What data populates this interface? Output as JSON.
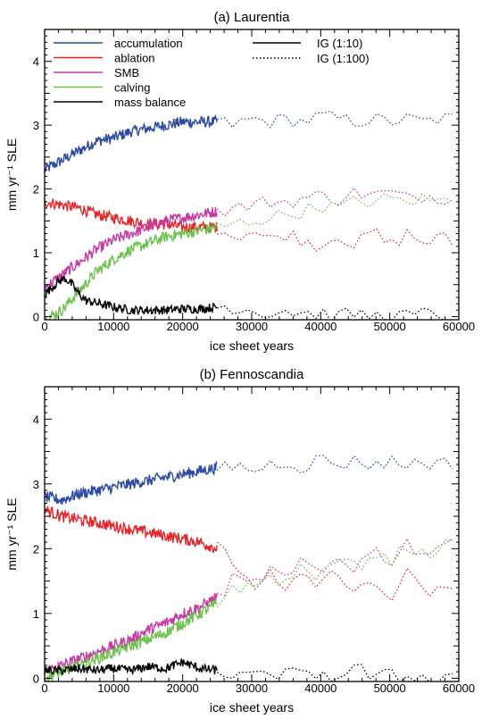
{
  "chart_data": [
    {
      "type": "line",
      "title": "(a) Laurentia",
      "xlabel": "ice sheet years",
      "ylabel": "mm yr⁻¹ SLE",
      "xlim": [
        0,
        60000
      ],
      "ylim": [
        -0.05,
        4.5
      ],
      "xticks": [
        0,
        10000,
        20000,
        30000,
        40000,
        50000,
        60000
      ],
      "yticks": [
        0,
        1,
        2,
        3,
        4
      ],
      "xtick_labels": [
        "0",
        "10000",
        "20000",
        "30000",
        "40000",
        "50000",
        "60000"
      ],
      "ytick_labels": [
        "0",
        "1",
        "2",
        "3",
        "4"
      ],
      "grid": false,
      "legend_placement": "top-left",
      "legend": {
        "series": [
          {
            "name": "accumulation",
            "color": "#2c4aa3"
          },
          {
            "name": "ablation",
            "color": "#e4262b"
          },
          {
            "name": "SMB",
            "color": "#c73aa5"
          },
          {
            "name": "calving",
            "color": "#6cc24a"
          },
          {
            "name": "mass balance",
            "color": "#000000"
          }
        ],
        "styles": [
          {
            "name": "IG (1:10)",
            "dash": "solid"
          },
          {
            "name": "IG (1:100)",
            "dash": "dotted"
          }
        ]
      },
      "segments": [
        {
          "label": "IG (1:10)",
          "x_range": [
            0,
            25000
          ]
        },
        {
          "label": "IG (1:100)",
          "x_range": [
            25000,
            60000
          ]
        }
      ],
      "series": [
        {
          "name": "accumulation",
          "color": "#2c4aa3",
          "x": [
            0,
            2500,
            5000,
            7500,
            10000,
            12500,
            15000,
            17500,
            20000,
            22500,
            25000,
            27500,
            30000,
            32500,
            35000,
            37500,
            40000,
            42500,
            45000,
            47500,
            50000,
            52500,
            55000,
            57500,
            60000
          ],
          "y": [
            2.3,
            2.45,
            2.6,
            2.75,
            2.8,
            2.9,
            2.95,
            3.0,
            3.05,
            3.05,
            3.05,
            3.0,
            3.1,
            3.05,
            3.1,
            3.05,
            3.15,
            3.1,
            3.05,
            3.1,
            3.05,
            3.1,
            3.05,
            3.1,
            3.1
          ]
        },
        {
          "name": "ablation",
          "color": "#e4262b",
          "x": [
            0,
            2500,
            5000,
            7500,
            10000,
            12500,
            15000,
            17500,
            20000,
            22500,
            25000,
            27500,
            30000,
            32500,
            35000,
            37500,
            40000,
            42500,
            45000,
            47500,
            50000,
            52500,
            55000,
            57500,
            60000
          ],
          "y": [
            1.8,
            1.75,
            1.7,
            1.6,
            1.55,
            1.5,
            1.45,
            1.45,
            1.4,
            1.4,
            1.4,
            1.25,
            1.35,
            1.2,
            1.3,
            1.2,
            1.1,
            1.3,
            1.1,
            1.35,
            1.1,
            1.3,
            1.15,
            1.25,
            1.1
          ]
        },
        {
          "name": "SMB",
          "color": "#c73aa5",
          "x": [
            0,
            2500,
            5000,
            7500,
            10000,
            12500,
            15000,
            17500,
            20000,
            22500,
            25000,
            27500,
            30000,
            32500,
            35000,
            37500,
            40000,
            42500,
            45000,
            47500,
            50000,
            52500,
            55000,
            57500,
            60000
          ],
          "y": [
            0.45,
            0.65,
            0.85,
            1.05,
            1.2,
            1.3,
            1.4,
            1.5,
            1.55,
            1.6,
            1.65,
            1.7,
            1.75,
            1.8,
            1.8,
            1.85,
            1.9,
            1.85,
            1.95,
            1.9,
            1.95,
            1.85,
            1.9,
            1.85,
            1.95
          ]
        },
        {
          "name": "calving",
          "color": "#6cc24a",
          "x": [
            0,
            2500,
            5000,
            7500,
            10000,
            12500,
            15000,
            17500,
            20000,
            22500,
            25000,
            27500,
            30000,
            32500,
            35000,
            37500,
            40000,
            42500,
            45000,
            47500,
            50000,
            52500,
            55000,
            57500,
            60000
          ],
          "y": [
            -0.05,
            0.1,
            0.4,
            0.7,
            0.9,
            1.05,
            1.15,
            1.25,
            1.3,
            1.35,
            1.4,
            1.45,
            1.5,
            1.55,
            1.6,
            1.65,
            1.75,
            1.7,
            1.8,
            1.8,
            1.85,
            1.8,
            1.85,
            1.8,
            1.9
          ]
        },
        {
          "name": "mass balance",
          "color": "#000000",
          "x": [
            0,
            1000,
            2000,
            3000,
            4000,
            5000,
            6000,
            8000,
            10000,
            12500,
            15000,
            17500,
            20000,
            22500,
            25000,
            27500,
            30000,
            32500,
            35000,
            37500,
            40000,
            42500,
            45000,
            47500,
            50000,
            52500,
            55000,
            57500,
            60000
          ],
          "y": [
            0.35,
            0.45,
            0.55,
            0.6,
            0.5,
            0.35,
            0.25,
            0.2,
            0.15,
            0.1,
            0.1,
            0.1,
            0.12,
            0.12,
            0.15,
            0.15,
            0.1,
            0.05,
            0.1,
            0.05,
            0.05,
            0.0,
            0.05,
            0.0,
            0.05,
            0.0,
            0.05,
            0.0,
            0.0
          ]
        }
      ]
    },
    {
      "type": "line",
      "title": "(b) Fennoscandia",
      "xlabel": "ice sheet years",
      "ylabel": "mm yr⁻¹ SLE",
      "xlim": [
        0,
        60000
      ],
      "ylim": [
        -0.05,
        4.5
      ],
      "xticks": [
        0,
        10000,
        20000,
        30000,
        40000,
        50000,
        60000
      ],
      "yticks": [
        0,
        1,
        2,
        3,
        4
      ],
      "xtick_labels": [
        "0",
        "10000",
        "20000",
        "30000",
        "40000",
        "50000",
        "60000"
      ],
      "ytick_labels": [
        "0",
        "1",
        "2",
        "3",
        "4"
      ],
      "grid": false,
      "segments": [
        {
          "label": "IG (1:10)",
          "x_range": [
            0,
            25000
          ]
        },
        {
          "label": "IG (1:100)",
          "x_range": [
            25000,
            60000
          ]
        }
      ],
      "series": [
        {
          "name": "accumulation",
          "color": "#2c4aa3",
          "x": [
            0,
            2500,
            5000,
            7500,
            10000,
            12500,
            15000,
            17500,
            20000,
            22500,
            25000,
            27500,
            30000,
            32500,
            35000,
            37500,
            40000,
            42500,
            45000,
            47500,
            50000,
            52500,
            55000,
            57500,
            60000
          ],
          "y": [
            2.8,
            2.75,
            2.85,
            2.9,
            2.95,
            3.0,
            3.05,
            3.1,
            3.15,
            3.2,
            3.25,
            3.3,
            3.2,
            3.3,
            3.35,
            3.25,
            3.4,
            3.3,
            3.35,
            3.3,
            3.35,
            3.3,
            3.35,
            3.3,
            3.35
          ]
        },
        {
          "name": "ablation",
          "color": "#e4262b",
          "x": [
            0,
            2500,
            5000,
            7500,
            10000,
            12500,
            15000,
            17500,
            20000,
            22500,
            25000,
            27500,
            30000,
            32500,
            35000,
            37500,
            40000,
            42500,
            45000,
            47500,
            50000,
            52500,
            55000,
            57500,
            60000
          ],
          "y": [
            2.6,
            2.5,
            2.45,
            2.4,
            2.35,
            2.3,
            2.25,
            2.2,
            2.15,
            2.1,
            2.0,
            1.8,
            1.4,
            1.6,
            1.3,
            1.6,
            1.4,
            1.7,
            1.3,
            1.5,
            1.2,
            1.6,
            1.3,
            1.4,
            1.25
          ]
        },
        {
          "name": "SMB",
          "color": "#c73aa5",
          "x": [
            0,
            2500,
            5000,
            7500,
            10000,
            12500,
            15000,
            17500,
            20000,
            22500,
            25000,
            27500,
            30000,
            32500,
            35000,
            37500,
            40000,
            42500,
            45000,
            47500,
            50000,
            52500,
            55000,
            57500,
            60000
          ],
          "y": [
            0.1,
            0.2,
            0.3,
            0.4,
            0.5,
            0.6,
            0.75,
            0.85,
            1.0,
            1.1,
            1.25,
            1.55,
            1.4,
            1.7,
            1.5,
            1.8,
            1.6,
            1.9,
            1.7,
            2.0,
            1.8,
            2.1,
            1.9,
            2.1,
            2.0
          ]
        },
        {
          "name": "calving",
          "color": "#6cc24a",
          "x": [
            0,
            2500,
            5000,
            7500,
            10000,
            12500,
            15000,
            17500,
            20000,
            22500,
            25000,
            27500,
            30000,
            32500,
            35000,
            37500,
            40000,
            42500,
            45000,
            47500,
            50000,
            52500,
            55000,
            57500,
            60000
          ],
          "y": [
            0.0,
            0.1,
            0.2,
            0.3,
            0.4,
            0.5,
            0.6,
            0.7,
            0.85,
            1.0,
            1.15,
            1.45,
            1.35,
            1.6,
            1.45,
            1.75,
            1.55,
            1.85,
            1.7,
            1.95,
            1.8,
            2.05,
            1.9,
            2.05,
            2.0
          ]
        },
        {
          "name": "mass balance",
          "color": "#000000",
          "x": [
            0,
            2500,
            5000,
            7500,
            10000,
            12500,
            15000,
            17500,
            20000,
            22500,
            25000,
            27500,
            30000,
            32500,
            35000,
            37500,
            40000,
            42500,
            45000,
            47500,
            50000,
            52500,
            55000,
            57500,
            60000
          ],
          "y": [
            0.12,
            0.12,
            0.15,
            0.12,
            0.15,
            0.12,
            0.18,
            0.15,
            0.25,
            0.15,
            0.12,
            0.05,
            0.0,
            0.05,
            0.1,
            0.0,
            0.1,
            0.0,
            0.2,
            0.0,
            0.05,
            0.0,
            0.05,
            0.0,
            0.05
          ]
        }
      ]
    }
  ]
}
